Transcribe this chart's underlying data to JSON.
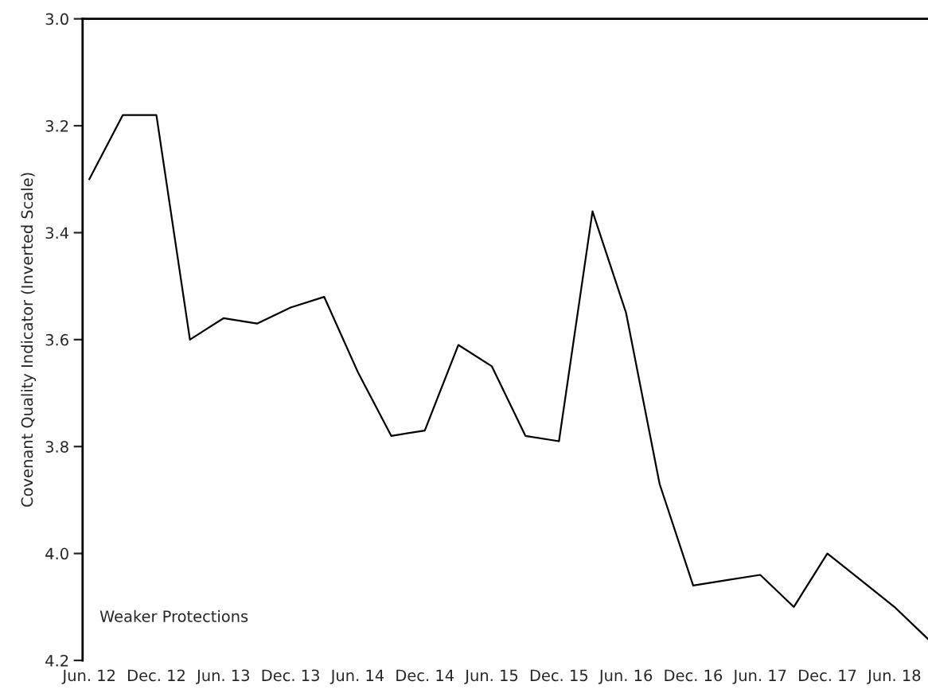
{
  "chart_data": {
    "type": "line",
    "ylabel": "Covenant Quality Indicator (Inverted Scale)",
    "categories": [
      "Jun. 12",
      null,
      "Dec. 12",
      null,
      "Jun. 13",
      null,
      "Dec. 13",
      null,
      "Jun. 14",
      null,
      "Dec. 14",
      null,
      "Jun. 15",
      null,
      "Dec. 15",
      null,
      "Jun. 16",
      null,
      "Dec. 16",
      null,
      "Jun. 17",
      null,
      "Dec. 17",
      null,
      "Jun. 18",
      null
    ],
    "series": [
      {
        "color": "#000000",
        "values": [
          3.3,
          3.18,
          3.18,
          3.6,
          3.56,
          3.57,
          3.54,
          3.52,
          3.66,
          3.78,
          3.77,
          3.61,
          3.65,
          3.78,
          3.79,
          3.36,
          3.55,
          3.87,
          4.06,
          4.05,
          4.04,
          4.1,
          4.0,
          4.05,
          4.1,
          4.16
        ]
      }
    ],
    "ylim": [
      4.2,
      3.0
    ],
    "yticks": [
      {
        "value": 3.0,
        "label": "3.0"
      },
      3.2,
      3.4,
      3.6,
      3.8,
      {
        "value": 4.0,
        "label": "4.0"
      },
      4.2
    ],
    "annotations": [
      "Weaker Protections"
    ],
    "grid": false,
    "legend": false,
    "marker": "none",
    "line_style": "solid"
  }
}
